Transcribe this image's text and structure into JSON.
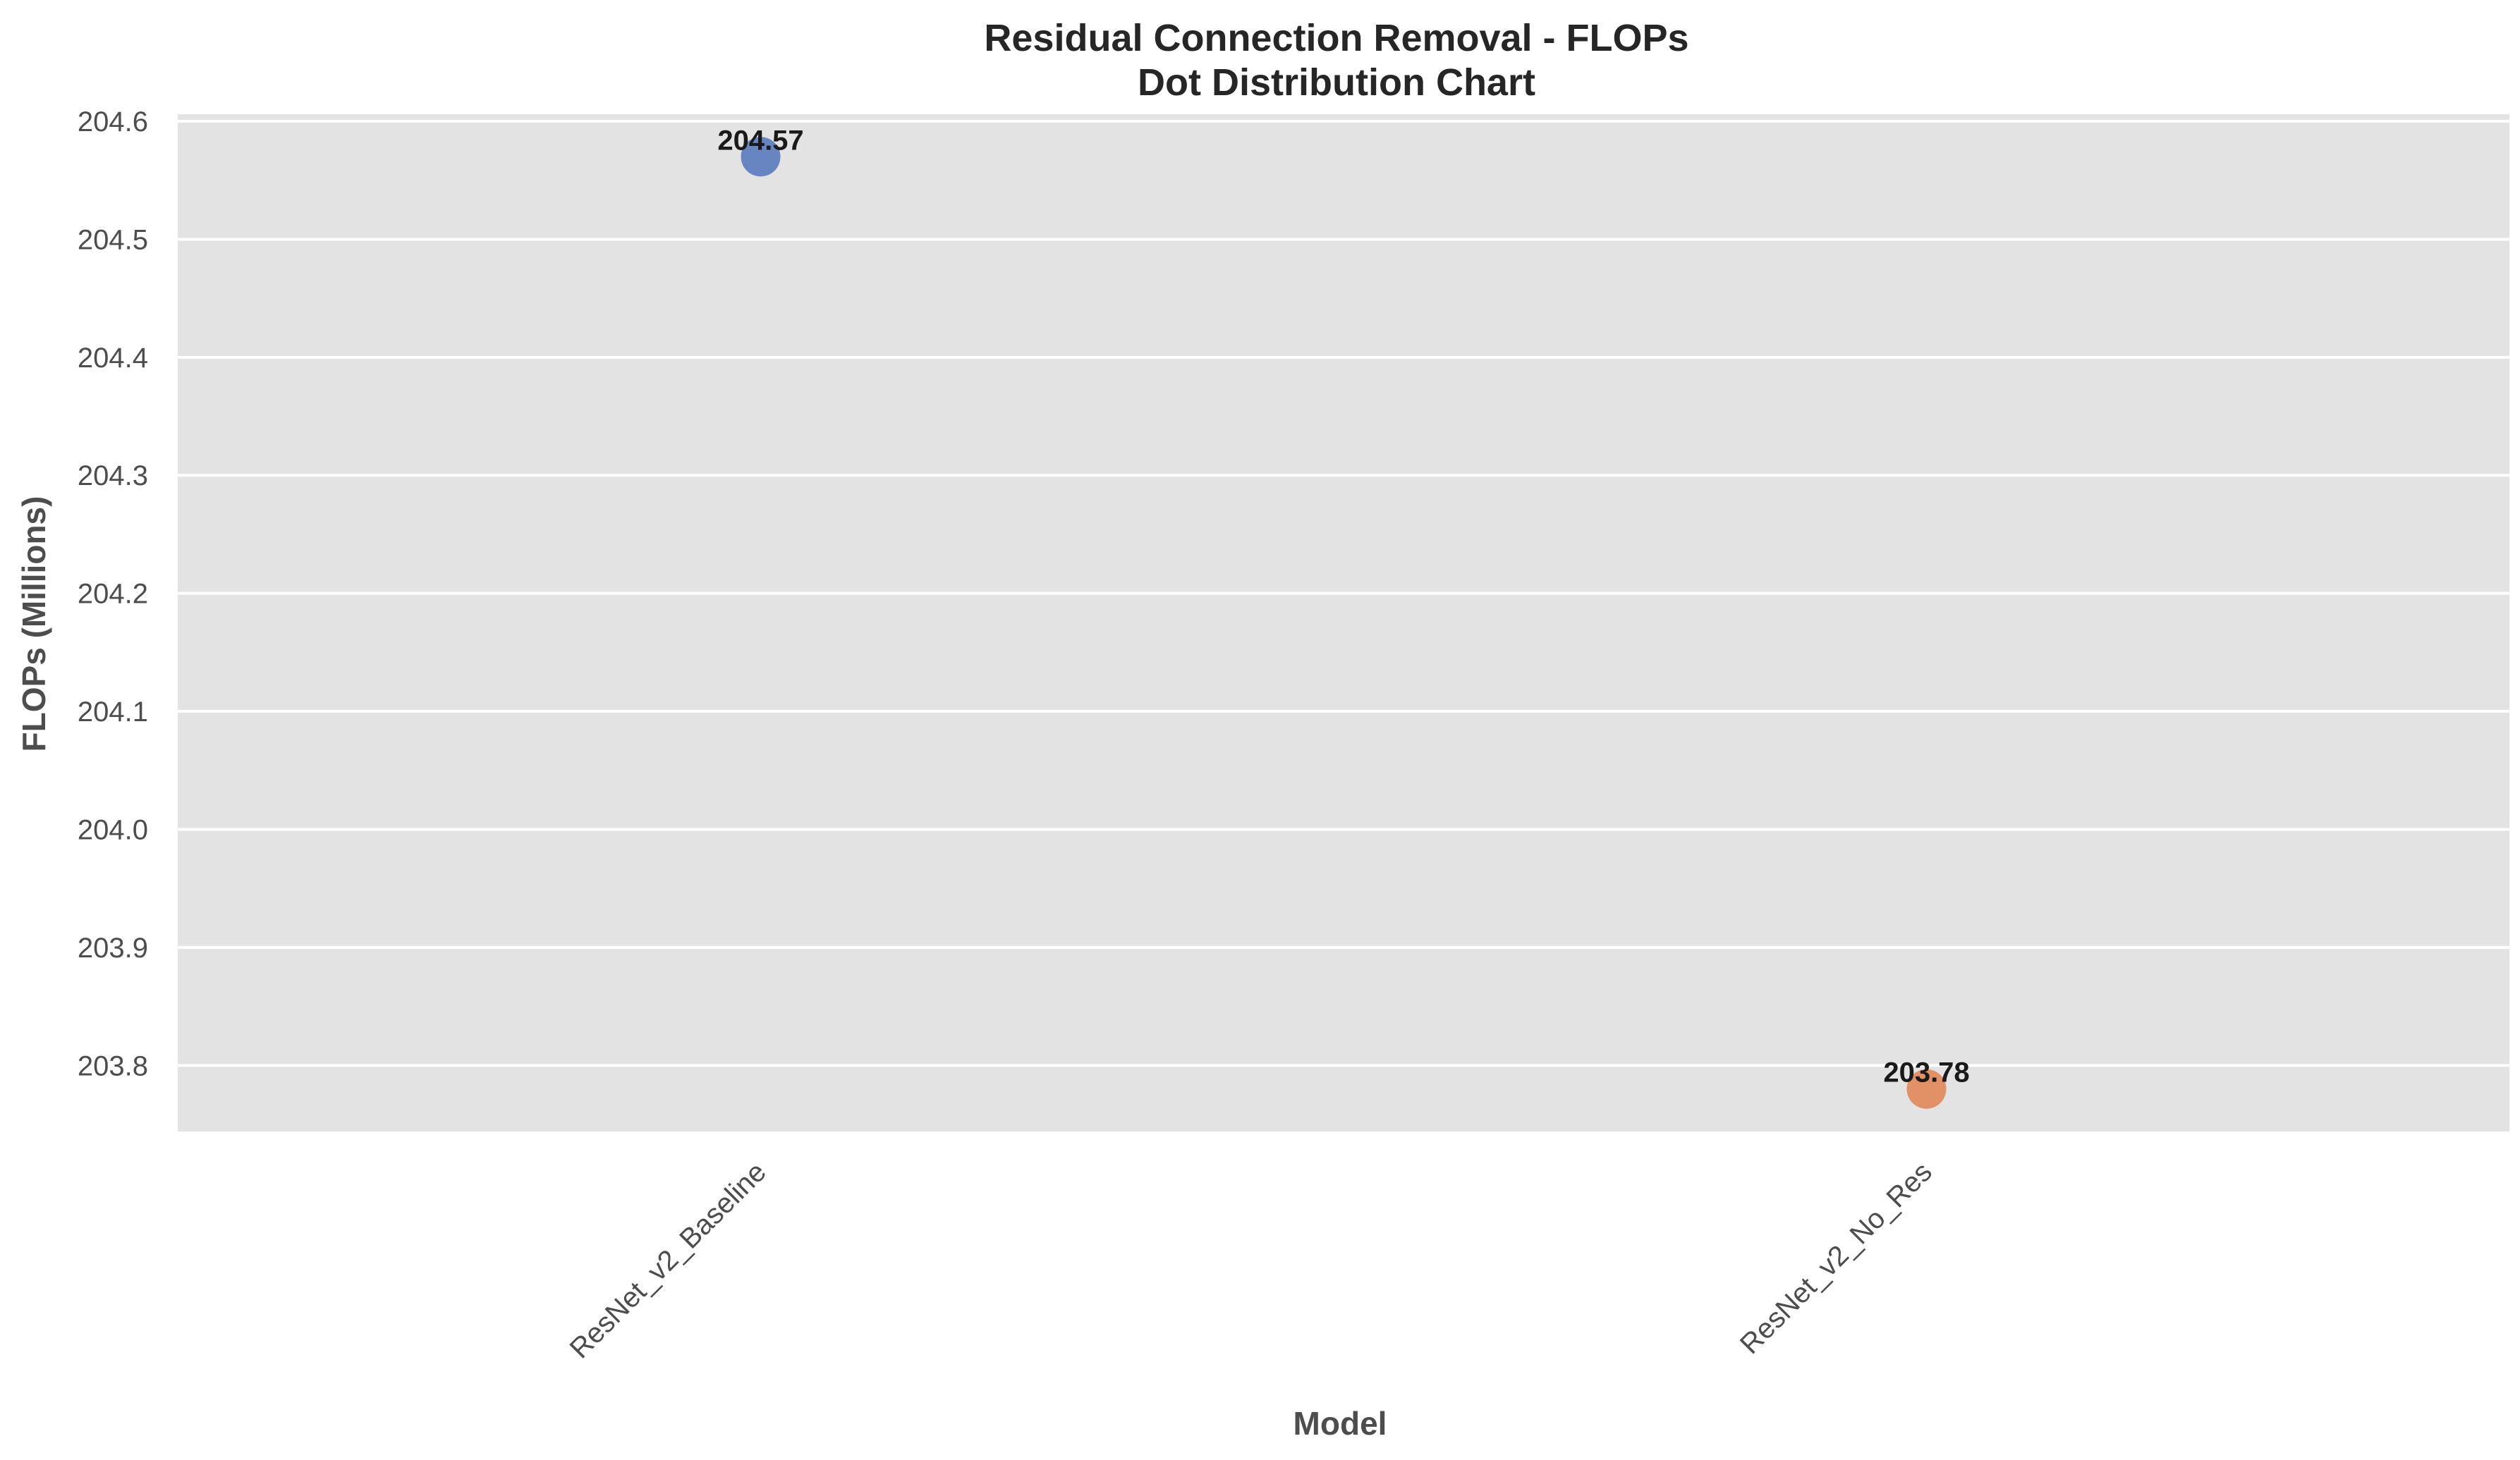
{
  "chart_data": {
    "type": "scatter",
    "title": "Residual Connection Removal - FLOPs",
    "subtitle": "Dot Distribution Chart",
    "xlabel": "Model",
    "ylabel": "FLOPs (Millions)",
    "categories": [
      "ResNet_v2_Baseline",
      "ResNet_v2_No_Res"
    ],
    "values": [
      204.57,
      203.78
    ],
    "data_labels": [
      "204.57",
      "203.78"
    ],
    "colors": [
      "#5f7fbf",
      "#e08c5e"
    ],
    "ylim": [
      203.744,
      204.606
    ],
    "yticks": [
      "203.8",
      "203.9",
      "204.0",
      "204.1",
      "204.2",
      "204.3",
      "204.4",
      "204.5",
      "204.6"
    ],
    "grid": true,
    "plot_background": "#e3e3e3",
    "grid_color": "#ffffff"
  }
}
